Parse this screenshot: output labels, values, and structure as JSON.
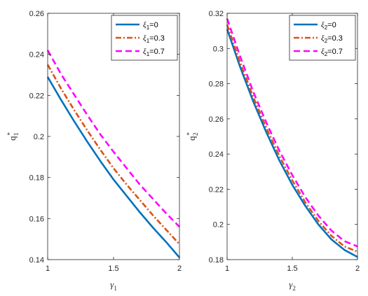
{
  "chart_data": [
    {
      "type": "line",
      "xlabel": "γ1",
      "xlabel_base": "γ",
      "xlabel_sub": "1",
      "ylabel": "q*1",
      "ylabel_base": "q",
      "ylabel_sup": "*",
      "ylabel_sub": "1",
      "xlim": [
        1,
        2
      ],
      "ylim": [
        0.14,
        0.26
      ],
      "xticks": [
        "1",
        "1.5",
        "2"
      ],
      "yticks": [
        "0.14",
        "0.16",
        "0.18",
        "0.2",
        "0.22",
        "0.24",
        "0.26"
      ],
      "grid": false,
      "legend_position": "top-right",
      "series": [
        {
          "name": "ξ1=0",
          "legend_symbol": "ξ",
          "legend_sub": "1",
          "legend_value": "=0",
          "color": "#0072BD",
          "dash": "solid",
          "x": [
            1.0,
            1.1,
            1.2,
            1.3,
            1.4,
            1.5,
            1.6,
            1.7,
            1.8,
            1.9,
            2.0
          ],
          "y": [
            0.229,
            0.218,
            0.2075,
            0.1975,
            0.188,
            0.179,
            0.171,
            0.163,
            0.1555,
            0.1485,
            0.141
          ]
        },
        {
          "name": "ξ1=0.3",
          "legend_symbol": "ξ",
          "legend_sub": "1",
          "legend_value": "=0.3",
          "color": "#D95319",
          "dash": "dashdot",
          "x": [
            1.0,
            1.1,
            1.2,
            1.3,
            1.4,
            1.5,
            1.6,
            1.7,
            1.8,
            1.9,
            2.0
          ],
          "y": [
            0.235,
            0.2235,
            0.213,
            0.203,
            0.1935,
            0.1845,
            0.1765,
            0.169,
            0.1615,
            0.1545,
            0.1475
          ]
        },
        {
          "name": "ξ1=0.7",
          "legend_symbol": "ξ",
          "legend_sub": "1",
          "legend_value": "=0.7",
          "color": "#FF00FF",
          "dash": "dashed",
          "x": [
            1.0,
            1.1,
            1.2,
            1.3,
            1.4,
            1.5,
            1.6,
            1.7,
            1.8,
            1.9,
            2.0
          ],
          "y": [
            0.242,
            0.2305,
            0.2205,
            0.2105,
            0.201,
            0.1925,
            0.1845,
            0.1765,
            0.1695,
            0.1625,
            0.156
          ]
        }
      ]
    },
    {
      "type": "line",
      "xlabel": "γ2",
      "xlabel_base": "γ",
      "xlabel_sub": "2",
      "ylabel": "q*2",
      "ylabel_base": "q",
      "ylabel_sup": "*",
      "ylabel_sub": "2",
      "xlim": [
        1,
        2
      ],
      "ylim": [
        0.18,
        0.32
      ],
      "xticks": [
        "1",
        "1.5",
        "2"
      ],
      "yticks": [
        "0.18",
        "0.2",
        "0.22",
        "0.24",
        "0.26",
        "0.28",
        "0.3",
        "0.32"
      ],
      "grid": false,
      "legend_position": "top-right",
      "series": [
        {
          "name": "ξ2=0",
          "legend_symbol": "ξ",
          "legend_sub": "2",
          "legend_value": "=0",
          "color": "#0072BD",
          "dash": "solid",
          "x": [
            1.0,
            1.1,
            1.2,
            1.3,
            1.4,
            1.5,
            1.6,
            1.7,
            1.8,
            1.9,
            2.0
          ],
          "y": [
            0.311,
            0.2895,
            0.27,
            0.2525,
            0.2365,
            0.2225,
            0.2105,
            0.2,
            0.1915,
            0.1855,
            0.1815
          ]
        },
        {
          "name": "ξ2=0.3",
          "legend_symbol": "ξ",
          "legend_sub": "2",
          "legend_value": "=0.3",
          "color": "#D95319",
          "dash": "dashdot",
          "x": [
            1.0,
            1.1,
            1.2,
            1.3,
            1.4,
            1.5,
            1.6,
            1.7,
            1.8,
            1.9,
            2.0
          ],
          "y": [
            0.3135,
            0.292,
            0.2725,
            0.255,
            0.239,
            0.225,
            0.2125,
            0.202,
            0.1935,
            0.1875,
            0.1845
          ]
        },
        {
          "name": "ξ2=0.7",
          "legend_symbol": "ξ",
          "legend_sub": "2",
          "legend_value": "=0.7",
          "color": "#FF00FF",
          "dash": "dashed",
          "x": [
            1.0,
            1.1,
            1.2,
            1.3,
            1.4,
            1.5,
            1.6,
            1.7,
            1.8,
            1.9,
            2.0
          ],
          "y": [
            0.317,
            0.2955,
            0.2755,
            0.258,
            0.242,
            0.228,
            0.2155,
            0.205,
            0.1965,
            0.1905,
            0.1875
          ]
        }
      ]
    }
  ]
}
